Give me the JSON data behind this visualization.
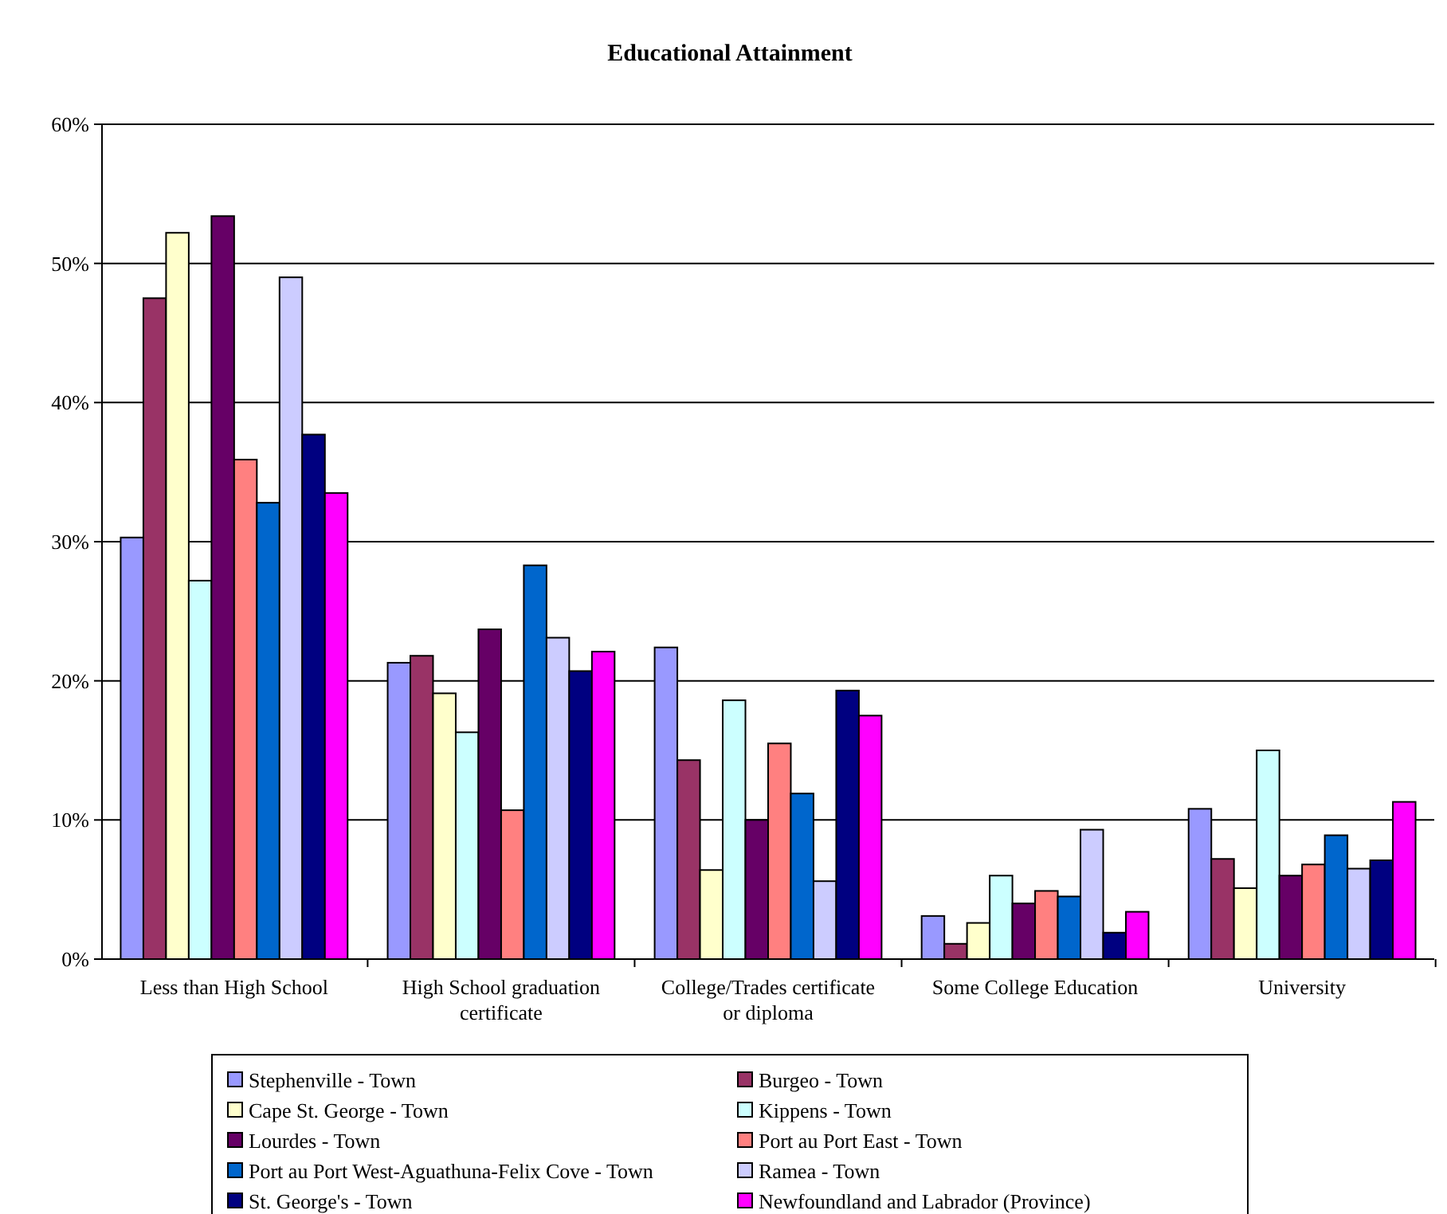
{
  "chart_data": {
    "type": "bar",
    "title": "Educational Attainment",
    "categories": [
      "Less than High School",
      "High School graduation certificate",
      "College/Trades certificate or diploma",
      "Some College Education",
      "University"
    ],
    "series": [
      {
        "name": "Stephenville - Town",
        "color": "#9999ff",
        "values": [
          30.3,
          21.3,
          22.4,
          3.1,
          10.8
        ]
      },
      {
        "name": "Burgeo - Town",
        "color": "#993366",
        "values": [
          47.5,
          21.8,
          14.3,
          1.1,
          7.2
        ]
      },
      {
        "name": "Cape St. George - Town",
        "color": "#ffffcc",
        "values": [
          52.2,
          19.1,
          6.4,
          2.6,
          5.1
        ]
      },
      {
        "name": "Kippens - Town",
        "color": "#ccffff",
        "values": [
          27.2,
          16.3,
          18.6,
          6.0,
          15.0
        ]
      },
      {
        "name": "Lourdes - Town",
        "color": "#660066",
        "values": [
          53.4,
          23.7,
          10.0,
          4.0,
          6.0
        ]
      },
      {
        "name": "Port au Port East - Town",
        "color": "#ff8080",
        "values": [
          35.9,
          10.7,
          15.5,
          4.9,
          6.8
        ]
      },
      {
        "name": "Port au Port West-Aguathuna-Felix Cove - Town",
        "color": "#0066cc",
        "values": [
          32.8,
          28.3,
          11.9,
          4.5,
          8.9
        ]
      },
      {
        "name": "Ramea - Town",
        "color": "#ccccff",
        "values": [
          49.0,
          23.1,
          5.6,
          9.3,
          6.5
        ]
      },
      {
        "name": "St. George's - Town",
        "color": "#000080",
        "values": [
          37.7,
          20.7,
          19.3,
          1.9,
          7.1
        ]
      },
      {
        "name": "Newfoundland and Labrador (Province)",
        "color": "#ff00ff",
        "values": [
          33.5,
          22.1,
          17.5,
          3.4,
          11.3
        ]
      }
    ],
    "ylim": [
      0,
      60
    ],
    "yticks": [
      {
        "value": 0,
        "label": "0%"
      },
      {
        "value": 10,
        "label": "10%"
      },
      {
        "value": 20,
        "label": "20%"
      },
      {
        "value": 30,
        "label": "30%"
      },
      {
        "value": 40,
        "label": "40%"
      },
      {
        "value": 50,
        "label": "50%"
      },
      {
        "value": 60,
        "label": "60%"
      }
    ],
    "grid": "y",
    "legend": "bottom"
  }
}
